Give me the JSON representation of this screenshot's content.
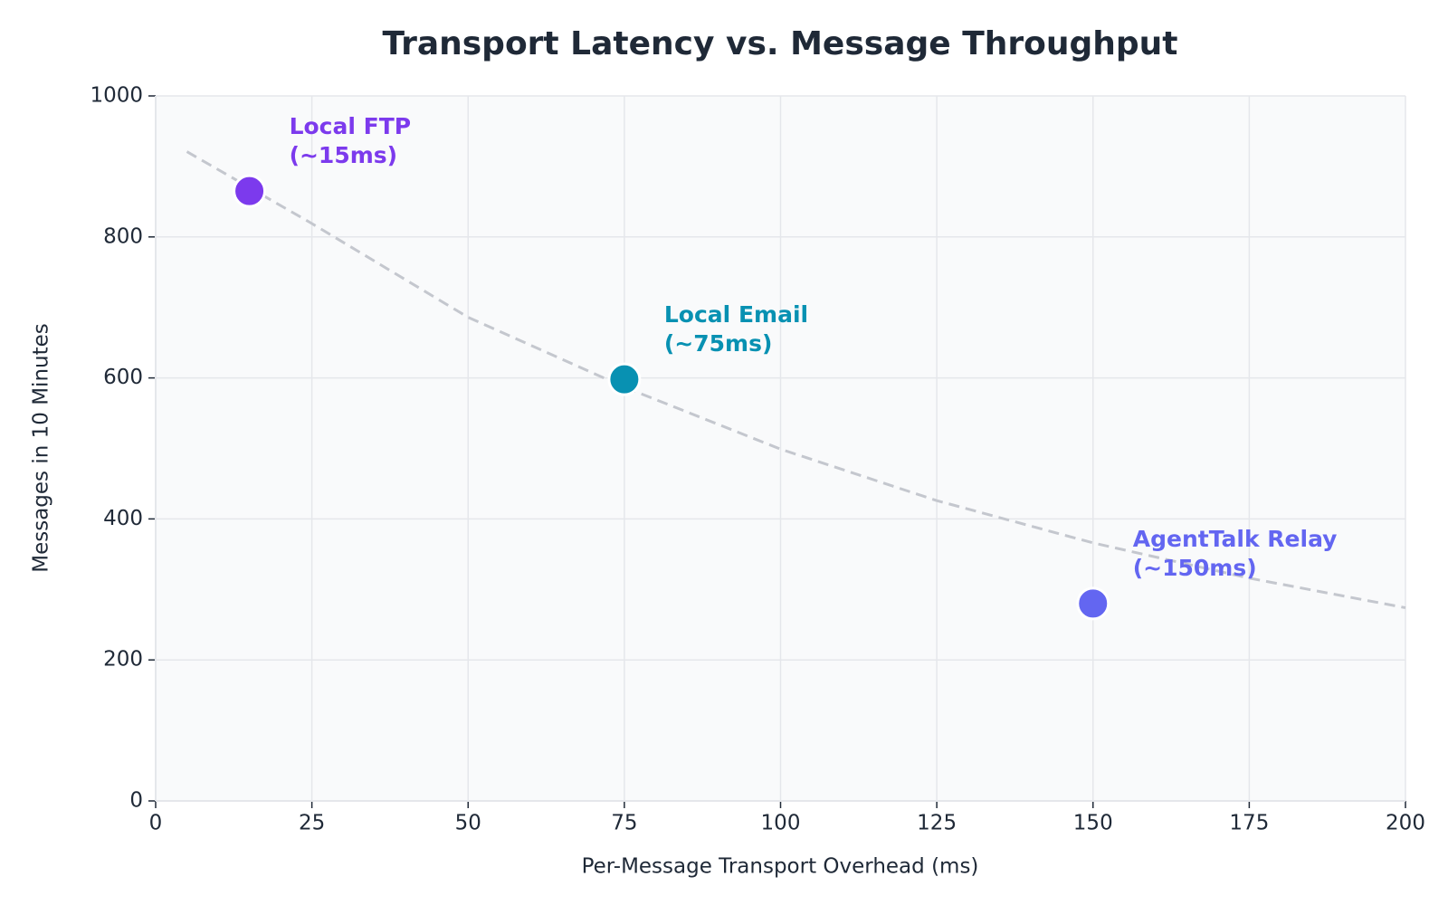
{
  "chart_data": {
    "type": "scatter",
    "title": "Transport Latency vs. Message Throughput",
    "x_label": "Per-Message Transport Overhead (ms)",
    "y_label": "Messages in 10 Minutes",
    "x": [
      15,
      75,
      150
    ],
    "values": [
      865,
      598,
      280
    ],
    "colors": [
      "#7c3aed",
      "#0891b2",
      "#6366f1"
    ],
    "labels": [
      [
        "Local FTP",
        "(~15ms)"
      ],
      [
        "Local Email",
        "(~75ms)"
      ],
      [
        "AgentTalk Relay",
        "(~150ms)"
      ]
    ],
    "trend": {
      "x": [
        5,
        25,
        50,
        75,
        100,
        125,
        150,
        175,
        200
      ],
      "values": [
        921,
        819,
        686,
        587,
        499,
        426,
        366,
        316,
        274
      ],
      "color": "#c4c7ce"
    },
    "xlim": [
      0,
      200
    ],
    "xticks": [
      0,
      25,
      50,
      75,
      100,
      125,
      150,
      175,
      200
    ],
    "ylim": [
      0,
      1000
    ],
    "yticks": [
      0,
      200,
      400,
      600,
      800,
      1000
    ],
    "grid": true
  }
}
